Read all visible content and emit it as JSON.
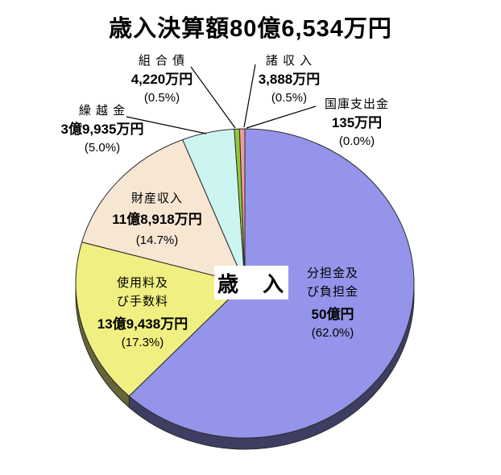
{
  "title": "歳入決算額80億6,534万円",
  "center_label": "歳　入",
  "chart_data": {
    "type": "pie",
    "style": "3d",
    "title": "歳入決算額80億6,534万円",
    "total_label": "80億6,534万円",
    "total_value_man_yen": 806534,
    "start_angle_deg": 0,
    "direction": "clockwise",
    "slices": [
      {
        "label": "分担金及び負担金",
        "amount": "50億円",
        "value_man_yen": 500000,
        "percent": 62.0,
        "percent_label": "(62.0%)",
        "color": "#9494EA"
      },
      {
        "label": "使用料及び手数料",
        "amount": "13億9,438万円",
        "value_man_yen": 139438,
        "percent": 17.3,
        "percent_label": "(17.3%)",
        "color": "#F0F082"
      },
      {
        "label": "財産収入",
        "amount": "11億8,918万円",
        "value_man_yen": 118918,
        "percent": 14.7,
        "percent_label": "(14.7%)",
        "color": "#F7E6D2"
      },
      {
        "label": "繰越金",
        "amount": "3億9,935万円",
        "value_man_yen": 39935,
        "percent": 5.0,
        "percent_label": "(5.0%)",
        "color": "#CCF5F2"
      },
      {
        "label": "組合債",
        "amount": "4,220万円",
        "value_man_yen": 4220,
        "percent": 0.5,
        "percent_label": "(0.5%)",
        "color": "#92C838"
      },
      {
        "label": "諸収入",
        "amount": "3,888万円",
        "value_man_yen": 3888,
        "percent": 0.5,
        "percent_label": "(0.5%)",
        "color": "#EE9C9C"
      },
      {
        "label": "国庫支出金",
        "amount": "135万円",
        "value_man_yen": 135,
        "percent": 0.0,
        "percent_label": "(0.0%)",
        "color": "#C0C0C0"
      }
    ]
  },
  "labels": {
    "buntankin": {
      "name1": "分担金及",
      "name2": "び負担金",
      "amount": "50億円",
      "pct": "(62.0%)"
    },
    "shiyoryo": {
      "name1": "使用料及",
      "name2": "び手数料",
      "amount": "13億9,438万円",
      "pct": "(17.3%)"
    },
    "zaisan": {
      "name": "財産収入",
      "amount": "11億8,918万円",
      "pct": "(14.7%)"
    },
    "kurikoshi": {
      "name": "繰 越 金",
      "amount": "3億9,935万円",
      "pct": "(5.0%)"
    },
    "kumiaisai": {
      "name": "組 合 債",
      "amount": "4,220万円",
      "pct": "(0.5%)"
    },
    "shoshunyu": {
      "name": "諸 収 入",
      "amount": "3,888万円",
      "pct": "(0.5%)"
    },
    "kokko": {
      "name": "国庫支出金",
      "amount": "135万円",
      "pct": "(0.0%)"
    }
  }
}
